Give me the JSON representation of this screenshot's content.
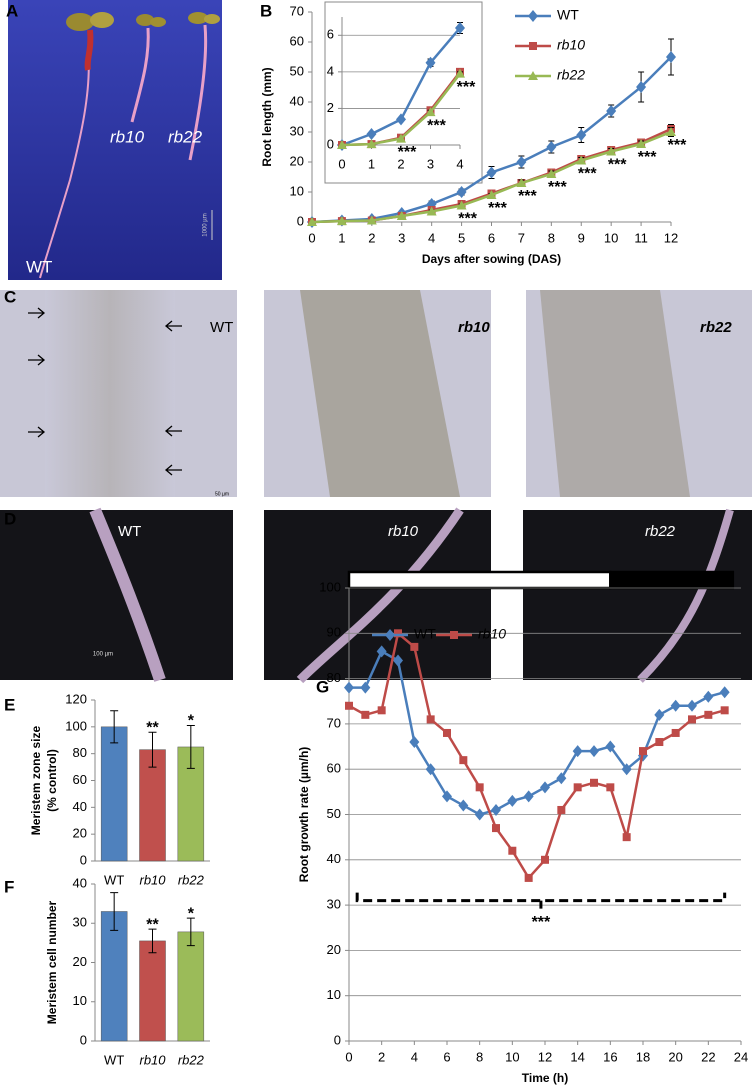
{
  "panel_letters": [
    "A",
    "B",
    "C",
    "D",
    "E",
    "F",
    "G"
  ],
  "photos": {
    "A": {
      "labels": [
        "WT",
        "rb10",
        "rb22"
      ],
      "scale": "1000 µm"
    },
    "C": {
      "labels": [
        "WT",
        "rb10",
        "rb22"
      ],
      "scale": "50 µm"
    },
    "D": {
      "labels": [
        "WT",
        "rb10",
        "rb22"
      ],
      "scale": "100 µm"
    }
  },
  "chart_data": [
    {
      "type": "line",
      "ylabel": "Root length (mm)",
      "xlabel": "Days after sowing (DAS)",
      "x": [
        0,
        1,
        2,
        3,
        4,
        5,
        6,
        7,
        8,
        9,
        10,
        11,
        12
      ],
      "xlim": [
        0,
        12
      ],
      "xticks": [
        0,
        1,
        2,
        3,
        4,
        5,
        6,
        7,
        8,
        9,
        10,
        11,
        12
      ],
      "ylim": [
        0,
        70
      ],
      "yticks": [
        0,
        10,
        20,
        30,
        40,
        50,
        60,
        70
      ],
      "grid": false,
      "series": [
        {
          "name": "WT",
          "color": "#4a7ebb",
          "marker": "diamond",
          "values": [
            0,
            0.5,
            1,
            3,
            6,
            10,
            16.5,
            20,
            25,
            29,
            37,
            45,
            55
          ],
          "errors": [
            0,
            0,
            0,
            0.5,
            1,
            1,
            2,
            2,
            2,
            2.5,
            2,
            5,
            6
          ]
        },
        {
          "name": "rb10",
          "color": "#be4b48",
          "marker": "square",
          "values": [
            0,
            0.3,
            0.5,
            2,
            4,
            6,
            9.5,
            13,
            16.5,
            21,
            24,
            26.5,
            31
          ],
          "errors": [
            0,
            0,
            0,
            0,
            0.5,
            0.5,
            0.5,
            1,
            1,
            1,
            1,
            1,
            1.5
          ]
        },
        {
          "name": "rb22",
          "color": "#98b954",
          "marker": "triangle",
          "values": [
            0,
            0.3,
            0.5,
            2,
            3.5,
            5.5,
            9,
            13,
            16,
            20.5,
            23.5,
            26,
            30
          ],
          "errors": [
            0,
            0,
            0,
            0,
            0.5,
            0.5,
            0.5,
            1,
            1,
            1,
            1,
            1,
            1.5
          ]
        }
      ],
      "annotations": [
        {
          "text": "***",
          "x": 5
        },
        {
          "text": "***",
          "x": 6
        },
        {
          "text": "***",
          "x": 7
        },
        {
          "text": "***",
          "x": 8
        },
        {
          "text": "***",
          "x": 9
        },
        {
          "text": "***",
          "x": 10
        },
        {
          "text": "***",
          "x": 11
        },
        {
          "text": "***",
          "x": 12
        }
      ],
      "inset": {
        "type": "line",
        "x": [
          0,
          1,
          2,
          3,
          4
        ],
        "xlim": [
          0,
          4
        ],
        "xticks": [
          0,
          1,
          2,
          3,
          4
        ],
        "ylim": [
          0,
          7
        ],
        "yticks": [
          0,
          2,
          4,
          6
        ],
        "grid": true,
        "series": [
          {
            "name": "WT",
            "color": "#4a7ebb",
            "marker": "diamond",
            "values": [
              0,
              0.6,
              1.4,
              4.5,
              6.4
            ],
            "errors": [
              0,
              0,
              0,
              0.2,
              0.3
            ]
          },
          {
            "name": "rb10",
            "color": "#be4b48",
            "marker": "square",
            "values": [
              0,
              0.05,
              0.4,
              1.9,
              4.0
            ],
            "errors": [
              0,
              0,
              0,
              0.1,
              0.1
            ]
          },
          {
            "name": "rb22",
            "color": "#98b954",
            "marker": "triangle",
            "values": [
              0,
              0.05,
              0.35,
              1.8,
              3.9
            ],
            "errors": [
              0,
              0,
              0,
              0.1,
              0.1
            ]
          }
        ],
        "annotations": [
          {
            "text": "***",
            "x": 2
          },
          {
            "text": "***",
            "x": 3
          },
          {
            "text": "***",
            "x": 4
          }
        ]
      }
    },
    {
      "type": "bar",
      "ylabel": [
        "Meristem zone size",
        "(% control)"
      ],
      "categories": [
        "WT",
        "rb10",
        "rb22"
      ],
      "values": [
        100,
        83,
        85
      ],
      "errors": [
        12,
        13,
        16
      ],
      "colors": [
        "#4f81bd",
        "#c0504d",
        "#9bbb59"
      ],
      "ylim": [
        0,
        120
      ],
      "yticks": [
        0,
        20,
        40,
        60,
        80,
        100,
        120
      ],
      "annotations": [
        {
          "text": "**",
          "category": 1
        },
        {
          "text": "*",
          "category": 2
        }
      ]
    },
    {
      "type": "bar",
      "ylabel": [
        "Meristem cell number"
      ],
      "categories": [
        "WT",
        "rb10",
        "rb22"
      ],
      "values": [
        33,
        25.5,
        27.8
      ],
      "errors": [
        4.8,
        3,
        3.5
      ],
      "colors": [
        "#4f81bd",
        "#c0504d",
        "#9bbb59"
      ],
      "ylim": [
        0,
        40
      ],
      "yticks": [
        0,
        10,
        20,
        30,
        40
      ],
      "annotations": [
        {
          "text": "**",
          "category": 1
        },
        {
          "text": "*",
          "category": 2
        }
      ]
    },
    {
      "type": "line",
      "ylabel": "Root growth rate (µm/h)",
      "xlabel": "Time (h)",
      "x": [
        0,
        1,
        2,
        3,
        4,
        5,
        6,
        7,
        8,
        9,
        10,
        11,
        12,
        13,
        14,
        15,
        16,
        17,
        18,
        19,
        20,
        21,
        22,
        23
      ],
      "xlim": [
        0,
        24
      ],
      "xticks": [
        0,
        2,
        4,
        6,
        8,
        10,
        12,
        14,
        16,
        18,
        20,
        22,
        24
      ],
      "ylim": [
        0,
        100
      ],
      "yticks": [
        0,
        10,
        20,
        30,
        40,
        50,
        60,
        70,
        80,
        90,
        100
      ],
      "grid": true,
      "series": [
        {
          "name": "WT",
          "color": "#4a7ebb",
          "marker": "diamond",
          "values": [
            78,
            78,
            86,
            84,
            66,
            60,
            54,
            52,
            50,
            51,
            53,
            54,
            56,
            58,
            64,
            64,
            65,
            60,
            63,
            72,
            74,
            74,
            76,
            77
          ]
        },
        {
          "name": "rb10",
          "color": "#be4b48",
          "marker": "square",
          "values": [
            74,
            72,
            73,
            90,
            87,
            71,
            68,
            62,
            56,
            47,
            42,
            36,
            40,
            51,
            56,
            57,
            56,
            45,
            64,
            66,
            68,
            71,
            72,
            73
          ]
        }
      ],
      "light_period": [
        0,
        16
      ],
      "dark_period": [
        16,
        23.5
      ],
      "bracket": {
        "x": [
          0.5,
          23
        ],
        "y": 31,
        "label": "***"
      }
    }
  ]
}
